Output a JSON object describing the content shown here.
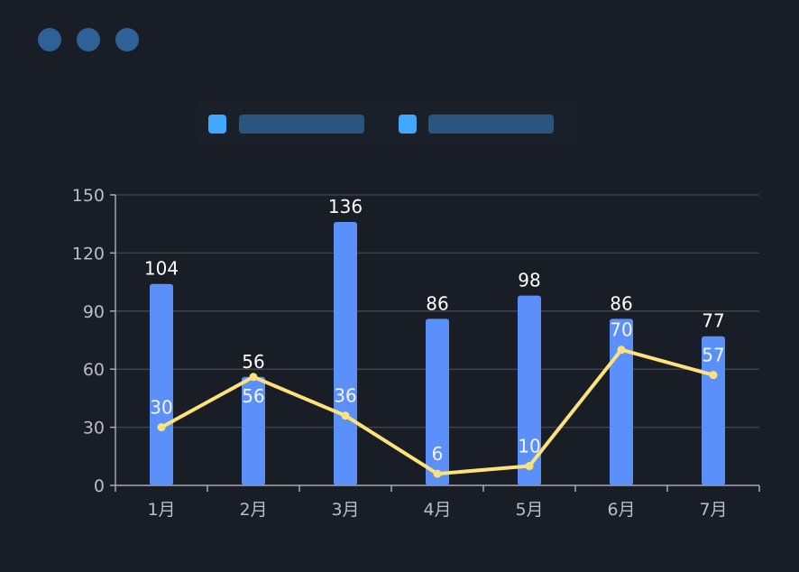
{
  "window_dots": {
    "color": "#2e6296"
  },
  "legend": {
    "placement": "top",
    "swatch_color": "#41a7ff",
    "label_placeholder_color": "#2a557e"
  },
  "chart_data": {
    "type": "bar+line",
    "categories": [
      "1月",
      "2月",
      "3月",
      "4月",
      "5月",
      "6月",
      "7月"
    ],
    "series": [
      {
        "type": "bar",
        "values": [
          104,
          56,
          136,
          86,
          98,
          86,
          77
        ],
        "color": "#5b8ff9"
      },
      {
        "type": "line",
        "values": [
          30,
          56,
          36,
          6,
          10,
          70,
          57
        ],
        "color": "#ffe27a"
      }
    ],
    "ylim": [
      0,
      150
    ],
    "yticks": [
      0,
      30,
      60,
      90,
      120,
      150
    ],
    "grid": true
  }
}
